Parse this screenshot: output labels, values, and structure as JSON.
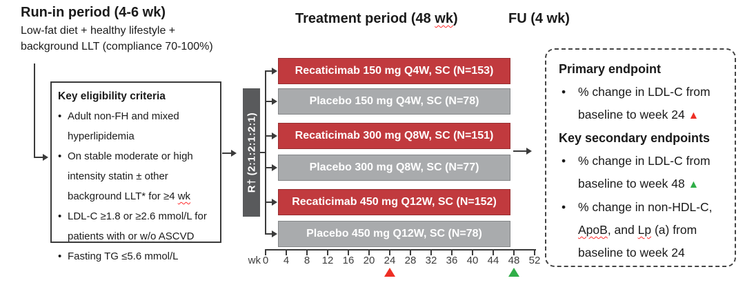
{
  "headers": {
    "run_in": {
      "title": "Run-in period (4-6 wk)",
      "subtitle_lines": [
        "Low-fat diet + healthy lifestyle +",
        "background LLT (compliance 70-100%)"
      ]
    },
    "treatment": {
      "segments": [
        {
          "t": "Treatment period (48 "
        },
        {
          "t": "wk",
          "sq": true
        },
        {
          "t": ")"
        }
      ]
    },
    "follow_up": {
      "title": "FU (4 wk)"
    }
  },
  "eligibility": {
    "title": "Key eligibility criteria",
    "bullets": [
      {
        "lines": [
          [
            {
              "t": "Adult non-FH and mixed"
            }
          ],
          [
            {
              "t": "hyperlipidemia"
            }
          ]
        ]
      },
      {
        "lines": [
          [
            {
              "t": "On stable moderate or high"
            }
          ],
          [
            {
              "t": "intensity statin ± other"
            }
          ],
          [
            {
              "t": "background LLT* for ≥4 "
            },
            {
              "t": "wk",
              "sq": true
            }
          ]
        ]
      },
      {
        "lines": [
          [
            {
              "t": "LDL-C ≥1.8 or ≥2.6 mmol/L for"
            }
          ],
          [
            {
              "t": "patients with or w/o ASCVD"
            }
          ]
        ]
      },
      {
        "lines": [
          [
            {
              "t": "Fasting TG ≤5.6 mmol/L"
            }
          ]
        ]
      }
    ]
  },
  "randomization": {
    "label": "R† (2:1:2:1:2:1)"
  },
  "arms": [
    {
      "label": "Recaticimab 150 mg Q4W, SC (N=153)",
      "type": "drug"
    },
    {
      "label": "Placebo 150 mg Q4W, SC (N=78)",
      "type": "placebo"
    },
    {
      "label": "Recaticimab 300 mg Q8W, SC (N=151)",
      "type": "drug"
    },
    {
      "label": "Placebo 300 mg Q8W, SC (N=77)",
      "type": "placebo"
    },
    {
      "label": "Recaticimab 450 mg Q12W, SC (N=152)",
      "type": "drug"
    },
    {
      "label": "Placebo 450 mg Q12W, SC (N=78)",
      "type": "placebo"
    }
  ],
  "axis": {
    "unit_label": "wk",
    "tick_labels": [
      "0",
      "4",
      "8",
      "12",
      "16",
      "20",
      "24",
      "28",
      "32",
      "36",
      "40",
      "44",
      "48",
      "52"
    ],
    "markers": [
      {
        "week": 24,
        "color": "#ee2e24",
        "name": "week-24-primary-marker"
      },
      {
        "week": 48,
        "color": "#2fae47",
        "name": "week-48-secondary-marker"
      }
    ]
  },
  "endpoints": {
    "primary_title": "Primary endpoint",
    "primary_bullets": [
      {
        "lines": [
          [
            {
              "t": "% change in LDL-C from"
            }
          ],
          [
            {
              "t": "baseline to week 24 "
            },
            {
              "t": "▲",
              "color": "#ee2e24"
            }
          ]
        ]
      }
    ],
    "secondary_title": "Key secondary endpoints",
    "secondary_bullets": [
      {
        "lines": [
          [
            {
              "t": "% change in LDL-C from"
            }
          ],
          [
            {
              "t": "baseline to week 48 "
            },
            {
              "t": "▲",
              "color": "#2fae47"
            }
          ]
        ]
      },
      {
        "lines": [
          [
            {
              "t": "% change in non-HDL-C,"
            }
          ],
          [
            {
              "t": "ApoB",
              "sq": true
            },
            {
              "t": ", and "
            },
            {
              "t": "Lp",
              "sq": true
            },
            {
              "t": " (a) from"
            }
          ],
          [
            {
              "t": "baseline to week 24"
            }
          ]
        ]
      }
    ]
  },
  "colors": {
    "drug_bar": "#c13a3e",
    "drug_border": "#962e31",
    "placebo_bar": "#a9abad",
    "placebo_border": "#848688",
    "randomization_bar": "#595a5c",
    "line": "#3a3a3a",
    "marker_red": "#ee2e24",
    "marker_green": "#2fae47"
  }
}
